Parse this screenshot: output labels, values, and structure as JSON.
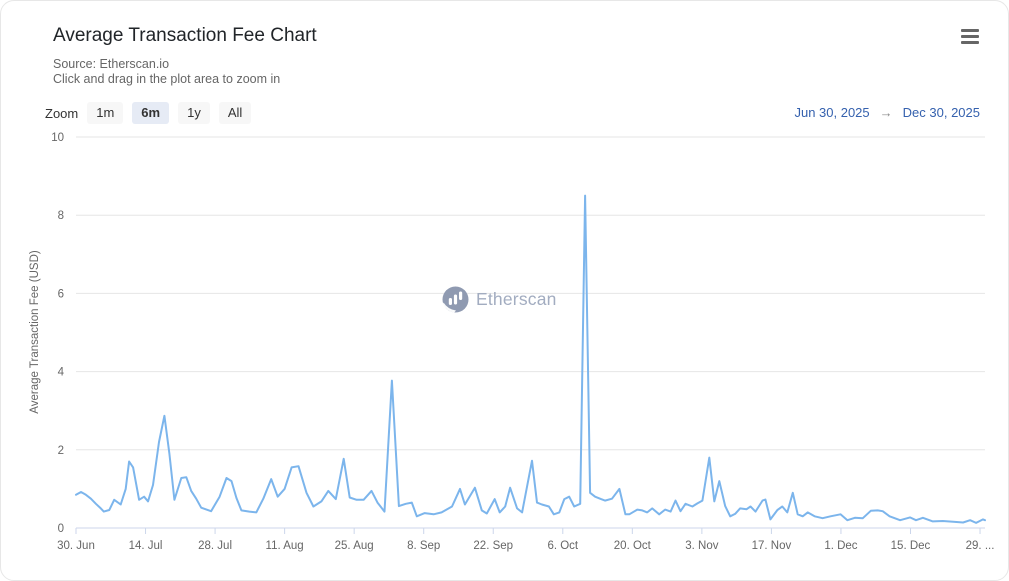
{
  "header": {
    "title": "Average Transaction Fee Chart",
    "subtitle_source": "Source: Etherscan.io",
    "subtitle_hint": "Click and drag in the plot area to zoom in"
  },
  "toolbar": {
    "zoom_label": "Zoom",
    "buttons": [
      {
        "label": "1m",
        "selected": false
      },
      {
        "label": "6m",
        "selected": true
      },
      {
        "label": "1y",
        "selected": false
      },
      {
        "label": "All",
        "selected": false
      }
    ],
    "range_from": "Jun 30, 2025",
    "range_arrow": "→",
    "range_to": "Dec 30, 2025"
  },
  "watermark": {
    "text": "Etherscan"
  },
  "colors": {
    "line": "#7cb5ec",
    "grid": "#e6e6e6",
    "axis_line": "#ccd6eb",
    "axis_label": "#666666",
    "range_text": "#3561ae",
    "selected_zoom_bg": "#e6ebf5",
    "zoom_btn_bg": "#f7f7f7",
    "watermark": "#a2acc0",
    "watermark_logo": "#8f9ab1"
  },
  "chart_data": {
    "type": "line",
    "title": "Average Transaction Fee Chart",
    "xlabel": "",
    "ylabel": "Average Transaction Fee (USD)",
    "ylim": [
      0,
      10
    ],
    "yticks": [
      0,
      2,
      4,
      6,
      8,
      10
    ],
    "grid": "horizontal-only",
    "legend": "none",
    "x_unit": "days since Jun 30, 2025",
    "x_range_days": [
      0,
      183
    ],
    "x_start_date": "Jun 30, 2025",
    "x_end_date": "Dec 30, 2025",
    "xticks": [
      {
        "day": 0,
        "label": "30. Jun"
      },
      {
        "day": 14,
        "label": "14. Jul"
      },
      {
        "day": 28,
        "label": "28. Jul"
      },
      {
        "day": 42,
        "label": "11. Aug"
      },
      {
        "day": 56,
        "label": "25. Aug"
      },
      {
        "day": 70,
        "label": "8. Sep"
      },
      {
        "day": 84,
        "label": "22. Sep"
      },
      {
        "day": 98,
        "label": "6. Oct"
      },
      {
        "day": 112,
        "label": "20. Oct"
      },
      {
        "day": 126,
        "label": "3. Nov"
      },
      {
        "day": 140,
        "label": "17. Nov"
      },
      {
        "day": 154,
        "label": "1. Dec"
      },
      {
        "day": 168,
        "label": "15. Dec"
      },
      {
        "day": 182,
        "label": "29. ..."
      }
    ],
    "series": [
      {
        "name": "Average Transaction Fee (USD)",
        "points": [
          [
            0,
            0.85
          ],
          [
            1,
            0.92
          ],
          [
            2,
            0.85
          ],
          [
            3,
            0.75
          ],
          [
            4,
            0.62
          ],
          [
            5,
            0.5
          ],
          [
            5.6,
            0.42
          ],
          [
            6.7,
            0.46
          ],
          [
            7.7,
            0.72
          ],
          [
            9,
            0.6
          ],
          [
            10,
            1.0
          ],
          [
            10.7,
            1.7
          ],
          [
            11.5,
            1.55
          ],
          [
            12.7,
            0.72
          ],
          [
            13.7,
            0.8
          ],
          [
            14.5,
            0.68
          ],
          [
            15.5,
            1.1
          ],
          [
            16.7,
            2.2
          ],
          [
            17.8,
            2.87
          ],
          [
            18.8,
            1.9
          ],
          [
            19.8,
            0.72
          ],
          [
            21.2,
            1.28
          ],
          [
            22.2,
            1.3
          ],
          [
            23.2,
            0.95
          ],
          [
            24.2,
            0.75
          ],
          [
            25.2,
            0.52
          ],
          [
            27.2,
            0.43
          ],
          [
            28.9,
            0.8
          ],
          [
            30.3,
            1.28
          ],
          [
            31.3,
            1.2
          ],
          [
            32.3,
            0.77
          ],
          [
            33.3,
            0.45
          ],
          [
            34.9,
            0.42
          ],
          [
            36.3,
            0.4
          ],
          [
            37.7,
            0.75
          ],
          [
            39.3,
            1.25
          ],
          [
            40.6,
            0.8
          ],
          [
            42,
            1.0
          ],
          [
            43.4,
            1.55
          ],
          [
            44.8,
            1.58
          ],
          [
            46.4,
            0.9
          ],
          [
            47.8,
            0.55
          ],
          [
            49.4,
            0.68
          ],
          [
            50.8,
            0.95
          ],
          [
            52.3,
            0.74
          ],
          [
            53.9,
            1.77
          ],
          [
            55.1,
            0.78
          ],
          [
            56.5,
            0.72
          ],
          [
            57.9,
            0.72
          ],
          [
            59.5,
            0.95
          ],
          [
            60.7,
            0.65
          ],
          [
            62.1,
            0.42
          ],
          [
            63.6,
            3.77
          ],
          [
            65,
            0.56
          ],
          [
            66.4,
            0.62
          ],
          [
            67.6,
            0.65
          ],
          [
            68.6,
            0.3
          ],
          [
            70.2,
            0.38
          ],
          [
            72,
            0.35
          ],
          [
            73.6,
            0.4
          ],
          [
            75.7,
            0.55
          ],
          [
            77.3,
            1.0
          ],
          [
            78.3,
            0.6
          ],
          [
            80.3,
            1.03
          ],
          [
            81.7,
            0.45
          ],
          [
            82.7,
            0.37
          ],
          [
            84.3,
            0.74
          ],
          [
            85.3,
            0.4
          ],
          [
            86.4,
            0.55
          ],
          [
            87.4,
            1.03
          ],
          [
            88.8,
            0.5
          ],
          [
            89.8,
            0.4
          ],
          [
            91.8,
            1.72
          ],
          [
            92.8,
            0.65
          ],
          [
            93.8,
            0.6
          ],
          [
            95.2,
            0.55
          ],
          [
            96.2,
            0.35
          ],
          [
            97.3,
            0.4
          ],
          [
            98.3,
            0.74
          ],
          [
            99.3,
            0.8
          ],
          [
            100.3,
            0.55
          ],
          [
            101.5,
            0.62
          ],
          [
            102.5,
            8.5
          ],
          [
            103.5,
            0.9
          ],
          [
            104.5,
            0.8
          ],
          [
            105.7,
            0.74
          ],
          [
            106.5,
            0.7
          ],
          [
            107.9,
            0.75
          ],
          [
            109.4,
            1.0
          ],
          [
            110.6,
            0.35
          ],
          [
            111.4,
            0.35
          ],
          [
            113,
            0.47
          ],
          [
            114,
            0.45
          ],
          [
            115,
            0.4
          ],
          [
            116,
            0.5
          ],
          [
            117.4,
            0.35
          ],
          [
            118.6,
            0.47
          ],
          [
            119.7,
            0.42
          ],
          [
            120.7,
            0.7
          ],
          [
            121.7,
            0.43
          ],
          [
            122.7,
            0.62
          ],
          [
            124.1,
            0.55
          ],
          [
            125.1,
            0.63
          ],
          [
            126.1,
            0.7
          ],
          [
            127.5,
            1.8
          ],
          [
            128.5,
            0.68
          ],
          [
            129.5,
            1.2
          ],
          [
            130.7,
            0.56
          ],
          [
            131.7,
            0.3
          ],
          [
            132.7,
            0.36
          ],
          [
            133.7,
            0.5
          ],
          [
            135,
            0.48
          ],
          [
            135.8,
            0.55
          ],
          [
            136.8,
            0.42
          ],
          [
            138.2,
            0.7
          ],
          [
            138.8,
            0.73
          ],
          [
            139.8,
            0.22
          ],
          [
            141.2,
            0.46
          ],
          [
            142.2,
            0.55
          ],
          [
            143.2,
            0.4
          ],
          [
            144.3,
            0.9
          ],
          [
            145.3,
            0.35
          ],
          [
            146.3,
            0.3
          ],
          [
            147.3,
            0.4
          ],
          [
            148.7,
            0.3
          ],
          [
            150.3,
            0.25
          ],
          [
            151.9,
            0.3
          ],
          [
            153.9,
            0.35
          ],
          [
            155.3,
            0.2
          ],
          [
            156.8,
            0.26
          ],
          [
            158.4,
            0.25
          ],
          [
            160,
            0.44
          ],
          [
            161.4,
            0.45
          ],
          [
            162.4,
            0.43
          ],
          [
            163.8,
            0.3
          ],
          [
            165.9,
            0.2
          ],
          [
            167.9,
            0.27
          ],
          [
            169.1,
            0.2
          ],
          [
            170.5,
            0.26
          ],
          [
            172.5,
            0.17
          ],
          [
            174.5,
            0.18
          ],
          [
            176.6,
            0.16
          ],
          [
            178.6,
            0.14
          ],
          [
            180,
            0.2
          ],
          [
            181.2,
            0.13
          ],
          [
            182.6,
            0.22
          ],
          [
            183,
            0.2
          ]
        ]
      }
    ]
  }
}
